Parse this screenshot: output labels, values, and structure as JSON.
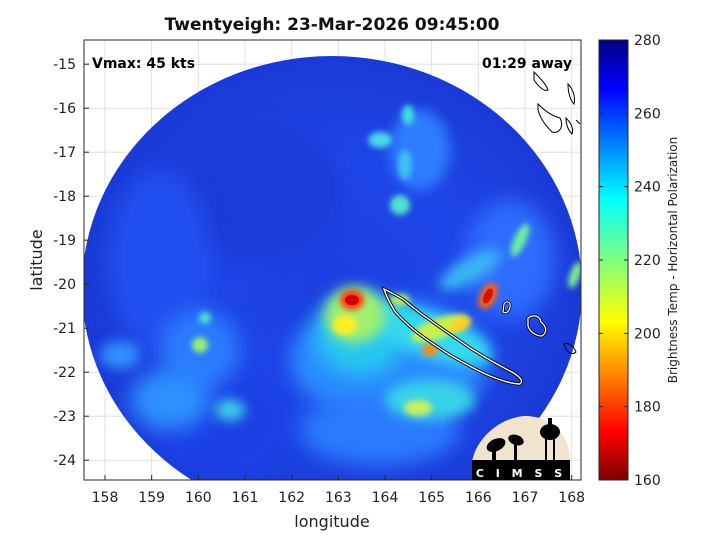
{
  "chart_data": {
    "type": "heatmap",
    "title": "Twentyeigh: 23-Mar-2026 09:45:00",
    "xlabel": "longitude",
    "ylabel": "latitude",
    "xlim": [
      157.55,
      168.2
    ],
    "ylim": [
      -24.45,
      -14.45
    ],
    "x_ticks": [
      158,
      159,
      160,
      161,
      162,
      163,
      164,
      165,
      166,
      167,
      168
    ],
    "y_ticks": [
      -15,
      -16,
      -17,
      -18,
      -19,
      -20,
      -21,
      -22,
      -23,
      -24
    ],
    "grid": true,
    "colorbar": {
      "label": "Brightness Temp - Horizontal Polarization",
      "range": [
        160,
        280
      ],
      "ticks": [
        160,
        180,
        200,
        220,
        240,
        260,
        280
      ],
      "colormap": "jet"
    },
    "annotations": {
      "vmax": "Vmax: 45 kts",
      "time_away": "01:29 away"
    },
    "features": [
      {
        "kind": "hot",
        "lon": 163.3,
        "lat": -20.4,
        "value": 165
      },
      {
        "kind": "hot",
        "lon": 166.3,
        "lat": -20.2,
        "value": 175
      },
      {
        "kind": "hot",
        "lon": 165.1,
        "lat": -21.6,
        "value": 205
      },
      {
        "kind": "warm",
        "lon": 165.4,
        "lat": -20.9,
        "value": 215
      },
      {
        "kind": "warm",
        "lon": 163.4,
        "lat": -21.2,
        "value": 225
      },
      {
        "kind": "warm",
        "lon": 164.0,
        "lat": -22.7,
        "value": 235
      },
      {
        "kind": "warm",
        "lon": 160.1,
        "lat": -21.3,
        "value": 225
      },
      {
        "kind": "warm",
        "lon": 167.1,
        "lat": -19.2,
        "value": 232
      },
      {
        "kind": "warm",
        "lon": 167.8,
        "lat": -19.9,
        "value": 228
      }
    ]
  },
  "logo": {
    "text": "CIMSS"
  }
}
